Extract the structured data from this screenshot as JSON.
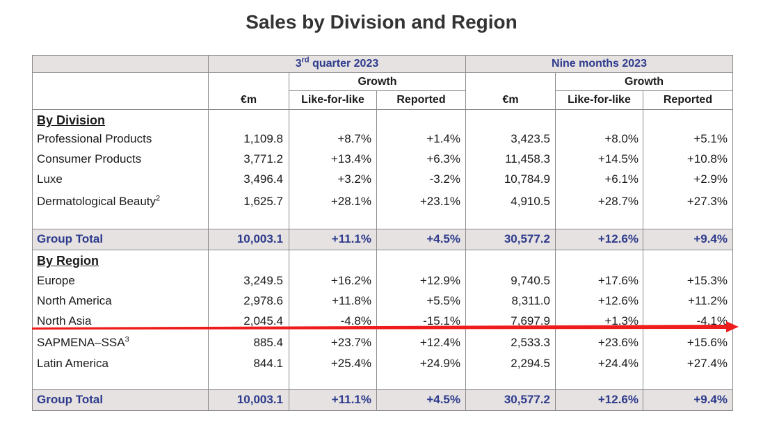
{
  "title": "Sales by Division and Region",
  "header": {
    "q3_base": "3",
    "q3_sup": "rd",
    "q3_rest": " quarter 2023",
    "nine_months": "Nine months 2023",
    "growth": "Growth",
    "col_em": "€m",
    "col_lfl": "Like-for-like",
    "col_reported": "Reported"
  },
  "division": {
    "heading": "By Division",
    "rows": [
      {
        "label": "Professional Products",
        "sup": "",
        "q3_em": "1,109.8",
        "q3_lfl": "+8.7%",
        "q3_rep": "+1.4%",
        "m9_em": "3,423.5",
        "m9_lfl": "+8.0%",
        "m9_rep": "+5.1%"
      },
      {
        "label": "Consumer Products",
        "sup": "",
        "q3_em": "3,771.2",
        "q3_lfl": "+13.4%",
        "q3_rep": "+6.3%",
        "m9_em": "11,458.3",
        "m9_lfl": "+14.5%",
        "m9_rep": "+10.8%"
      },
      {
        "label": "Luxe",
        "sup": "",
        "q3_em": "3,496.4",
        "q3_lfl": "+3.2%",
        "q3_rep": "-3.2%",
        "m9_em": "10,784.9",
        "m9_lfl": "+6.1%",
        "m9_rep": "+2.9%"
      },
      {
        "label": "Dermatological Beauty",
        "sup": "2",
        "q3_em": "1,625.7",
        "q3_lfl": "+28.1%",
        "q3_rep": "+23.1%",
        "m9_em": "4,910.5",
        "m9_lfl": "+28.7%",
        "m9_rep": "+27.3%"
      }
    ],
    "total": {
      "label": "Group Total",
      "q3_em": "10,003.1",
      "q3_lfl": "+11.1%",
      "q3_rep": "+4.5%",
      "m9_em": "30,577.2",
      "m9_lfl": "+12.6%",
      "m9_rep": "+9.4%"
    }
  },
  "region": {
    "heading": "By Region",
    "rows": [
      {
        "label": "Europe",
        "sup": "",
        "q3_em": "3,249.5",
        "q3_lfl": "+16.2%",
        "q3_rep": "+12.9%",
        "m9_em": "9,740.5",
        "m9_lfl": "+17.6%",
        "m9_rep": "+15.3%"
      },
      {
        "label": "North America",
        "sup": "",
        "q3_em": "2,978.6",
        "q3_lfl": "+11.8%",
        "q3_rep": "+5.5%",
        "m9_em": "8,311.0",
        "m9_lfl": "+12.6%",
        "m9_rep": "+11.2%"
      },
      {
        "label": "North Asia",
        "sup": "",
        "q3_em": "2,045.4",
        "q3_lfl": "-4.8%",
        "q3_rep": "-15.1%",
        "m9_em": "7,697.9",
        "m9_lfl": "+1.3%",
        "m9_rep": "-4.1%"
      },
      {
        "label": "SAPMENA–SSA",
        "sup": "3",
        "q3_em": "885.4",
        "q3_lfl": "+23.7%",
        "q3_rep": "+12.4%",
        "m9_em": "2,533.3",
        "m9_lfl": "+23.6%",
        "m9_rep": "+15.6%"
      },
      {
        "label": "Latin America",
        "sup": "",
        "q3_em": "844.1",
        "q3_lfl": "+25.4%",
        "q3_rep": "+24.9%",
        "m9_em": "2,294.5",
        "m9_lfl": "+24.4%",
        "m9_rep": "+27.4%"
      }
    ],
    "total": {
      "label": "Group Total",
      "q3_em": "10,003.1",
      "q3_lfl": "+11.1%",
      "q3_rep": "+4.5%",
      "m9_em": "30,577.2",
      "m9_lfl": "+12.6%",
      "m9_rep": "+9.4%"
    }
  },
  "colors": {
    "accent": "#2e3a8c",
    "band": "#e5e2e1",
    "arrow": "#ee1c1c"
  }
}
